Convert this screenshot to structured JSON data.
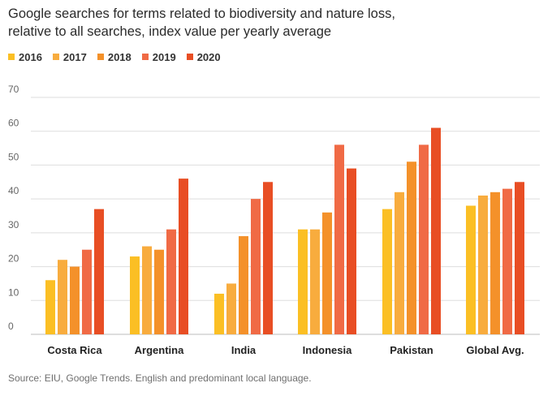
{
  "chart_data": {
    "type": "bar",
    "title_lines": [
      "Google searches for terms related to biodiversity and nature loss,",
      "relative to all searches, index value per yearly average"
    ],
    "categories": [
      "Costa Rica",
      "Argentina",
      "India",
      "Indonesia",
      "Pakistan",
      "Global Avg."
    ],
    "series": [
      {
        "name": "2016",
        "color": "#fbbf24",
        "values": [
          16,
          23,
          12,
          31,
          37,
          38
        ]
      },
      {
        "name": "2017",
        "color": "#f8ac3e",
        "values": [
          22,
          26,
          15,
          31,
          42,
          41
        ]
      },
      {
        "name": "2018",
        "color": "#f4912a",
        "values": [
          20,
          25,
          29,
          36,
          51,
          42
        ]
      },
      {
        "name": "2019",
        "color": "#f06a45",
        "values": [
          25,
          31,
          40,
          56,
          56,
          43
        ]
      },
      {
        "name": "2020",
        "color": "#e84e24",
        "values": [
          37,
          46,
          45,
          49,
          61,
          45
        ]
      }
    ],
    "ylim": [
      0,
      70
    ],
    "yticks": [
      0,
      10,
      20,
      30,
      40,
      50,
      60,
      70
    ],
    "grid": true,
    "legend_position": "top-left",
    "source": "Source: EIU, Google Trends. English and predominant local language."
  }
}
